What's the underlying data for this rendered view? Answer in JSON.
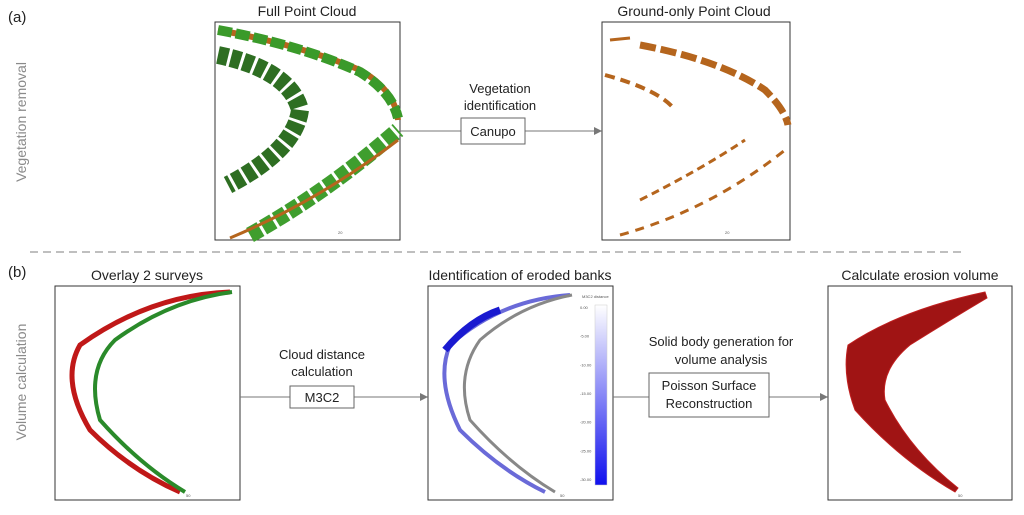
{
  "panel_labels": [
    "(a)",
    "(b)"
  ],
  "rows": [
    {
      "label": "Vegetation removal"
    },
    {
      "label": "Volume calculation"
    }
  ],
  "panels": [
    {
      "title": "Full Point Cloud",
      "scale_label": "20"
    },
    {
      "title": "Ground-only Point Cloud",
      "scale_label": "20"
    },
    {
      "title": "Overlay 2 surveys",
      "scale_label": "50"
    },
    {
      "title": "Identification of eroded banks",
      "scale_label": "50"
    },
    {
      "title": "Calculate erosion volume",
      "scale_label": "50"
    }
  ],
  "steps": [
    {
      "label_lines": [
        "Vegetation",
        "identification"
      ],
      "method_lines": [
        "Canupo"
      ]
    },
    {
      "label_lines": [
        "Cloud distance",
        "calculation"
      ],
      "method_lines": [
        "M3C2"
      ]
    },
    {
      "label_lines": [
        "Solid body generation for",
        "volume analysis"
      ],
      "method_lines": [
        "Poisson Surface",
        "Reconstruction"
      ]
    }
  ],
  "colorbar": {
    "title": "M3C2 distance",
    "ticks": [
      "0.00",
      "-5.00",
      "-10.00",
      "-15.00",
      "-20.00",
      "-25.00",
      "-30.00"
    ]
  }
}
